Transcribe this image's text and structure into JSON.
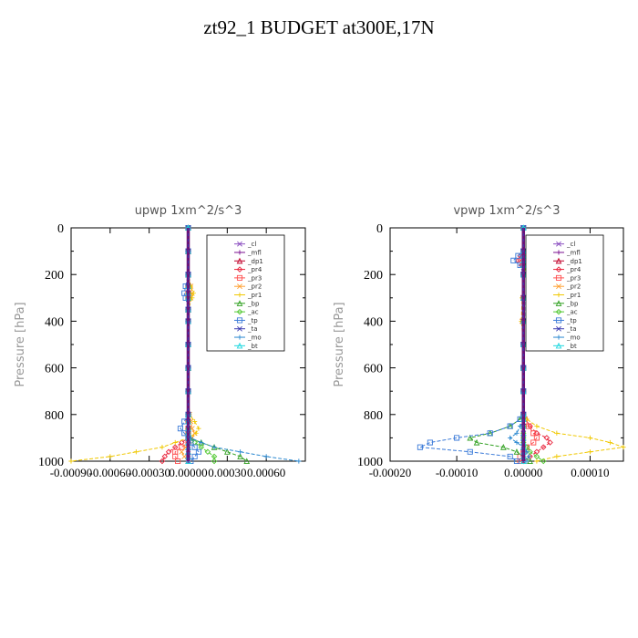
{
  "figure_title": "zt92_1  BUDGET at300E,17N",
  "chart_data": [
    {
      "type": "line",
      "title": "upwp   1xm^2/s^3",
      "ylabel": "Pressure  [hPa]",
      "ylim": [
        1000,
        0
      ],
      "xlim": [
        -0.0009,
        0.0009
      ],
      "yticks": [
        "0",
        "200",
        "400",
        "600",
        "800",
        "1000"
      ],
      "ytick_values": [
        0,
        200,
        400,
        600,
        800,
        1000
      ],
      "xticks": [
        "-0.00090",
        "-0.00060",
        "-0.00030",
        "0.00000",
        "0.00030",
        "0.00060"
      ],
      "xtick_values": [
        -0.0009,
        -0.0006,
        -0.0003,
        0,
        0.0003,
        0.0006
      ],
      "y": [
        0,
        100,
        200,
        250,
        280,
        300,
        350,
        400,
        500,
        600,
        700,
        800,
        830,
        860,
        880,
        900,
        920,
        940,
        960,
        980,
        1000
      ],
      "series": [
        {
          "name": "_cl",
          "color": "#8a4dc0",
          "values": [
            0,
            0,
            0,
            0,
            0,
            0,
            0,
            0,
            0,
            0,
            0,
            0,
            0,
            0,
            0,
            0,
            0,
            0,
            0,
            0,
            0
          ]
        },
        {
          "name": "_mfl",
          "color": "#7a1090",
          "values": [
            0,
            0,
            0,
            0,
            0,
            0,
            0,
            0,
            0,
            0,
            0,
            0,
            0,
            0,
            0,
            0,
            0,
            0,
            0,
            0,
            0
          ]
        },
        {
          "name": "_dp1",
          "color": "#c0002a",
          "values": [
            0,
            0,
            0,
            0,
            0,
            0,
            0,
            0,
            0,
            0,
            0,
            0,
            0,
            0,
            0,
            0,
            0,
            0,
            0,
            0,
            0
          ]
        },
        {
          "name": "_pr4",
          "color": "#e8243c",
          "values": [
            0,
            0,
            0,
            0,
            0,
            0,
            0,
            0,
            0,
            0,
            0,
            0,
            0,
            0,
            0,
            0,
            -5e-05,
            -0.0001,
            -0.00015,
            -0.00018,
            -0.0002
          ]
        },
        {
          "name": "_pr3",
          "color": "#ff5050",
          "values": [
            0,
            0,
            0,
            0,
            0,
            0,
            0,
            0,
            0,
            0,
            0,
            0,
            0,
            0,
            0,
            0,
            0,
            -5e-05,
            -0.0001,
            -0.0001,
            -8e-05
          ]
        },
        {
          "name": "_pr2",
          "color": "#ffa030",
          "values": [
            0,
            0,
            0,
            2e-05,
            3e-05,
            2e-05,
            0,
            0,
            0,
            0,
            0,
            1e-05,
            2e-05,
            3e-05,
            5e-05,
            3e-05,
            0,
            -2e-05,
            -5e-05,
            -3e-05,
            0
          ]
        },
        {
          "name": "_pr1",
          "color": "#f0c800",
          "values": [
            0,
            0,
            0,
            2e-05,
            4e-05,
            3e-05,
            0,
            0,
            0,
            0,
            0,
            1e-05,
            5e-05,
            8e-05,
            6e-05,
            0,
            -0.0001,
            -0.0002,
            -0.0004,
            -0.0006,
            -0.0009
          ]
        },
        {
          "name": "_bp",
          "color": "#30a020",
          "values": [
            0,
            0,
            0,
            0,
            0,
            0,
            0,
            0,
            0,
            0,
            0,
            0,
            0,
            0,
            0,
            0,
            0.0001,
            0.0002,
            0.0003,
            0.0004,
            0.00045
          ]
        },
        {
          "name": "_ac",
          "color": "#50c830",
          "values": [
            0,
            0,
            0,
            0,
            0,
            0,
            0,
            0,
            0,
            0,
            0,
            0,
            0,
            0,
            0,
            0,
            5e-05,
            0.0001,
            0.00015,
            0.0002,
            0.0002
          ]
        },
        {
          "name": "_tp",
          "color": "#3a7ad8",
          "values": [
            0,
            0,
            0,
            -2e-05,
            -3e-05,
            -2e-05,
            0,
            0,
            0,
            0,
            0,
            0,
            -3e-05,
            -6e-05,
            -3e-05,
            0,
            2e-05,
            5e-05,
            8e-05,
            5e-05,
            2e-05
          ]
        },
        {
          "name": "_ta",
          "color": "#3a3ab0",
          "values": [
            0,
            0,
            0,
            0,
            0,
            0,
            0,
            0,
            0,
            0,
            0,
            0,
            0,
            0,
            0,
            0,
            0,
            0,
            0,
            0,
            0
          ]
        },
        {
          "name": "_mo",
          "color": "#2a88d0",
          "values": [
            0,
            0,
            0,
            0,
            0,
            0,
            0,
            0,
            0,
            0,
            0,
            0,
            0,
            0,
            0,
            2e-05,
            0.0001,
            0.0002,
            0.0004,
            0.0006,
            0.00085
          ]
        },
        {
          "name": "_bt",
          "color": "#20d8e0",
          "values": [
            0,
            0,
            0,
            0,
            0,
            0,
            0,
            0,
            0,
            0,
            0,
            0,
            0,
            0,
            0,
            0,
            0,
            0,
            0,
            0,
            0
          ]
        }
      ]
    },
    {
      "type": "line",
      "title": "vpwp   1xm^2/s^3",
      "ylabel": "Pressure  [hPa]",
      "ylim": [
        1000,
        0
      ],
      "xlim": [
        -0.0002,
        0.00015
      ],
      "yticks": [
        "0",
        "200",
        "400",
        "600",
        "800",
        "1000"
      ],
      "ytick_values": [
        0,
        200,
        400,
        600,
        800,
        1000
      ],
      "xticks": [
        "-0.00020",
        "-0.00010",
        "0.00000",
        "0.00010"
      ],
      "xtick_values": [
        -0.0002,
        -0.0001,
        0,
        0.0001
      ],
      "y": [
        0,
        100,
        120,
        140,
        160,
        200,
        300,
        400,
        500,
        600,
        700,
        800,
        820,
        850,
        880,
        900,
        920,
        940,
        960,
        980,
        1000
      ],
      "series": [
        {
          "name": "_cl",
          "color": "#8a4dc0",
          "values": [
            0,
            0,
            0,
            0,
            0,
            0,
            0,
            0,
            0,
            0,
            0,
            0,
            0,
            0,
            0,
            0,
            0,
            0,
            0,
            0,
            0
          ]
        },
        {
          "name": "_mfl",
          "color": "#7a1090",
          "values": [
            0,
            0,
            0,
            0,
            0,
            0,
            0,
            0,
            0,
            0,
            0,
            0,
            0,
            0,
            0,
            0,
            0,
            0,
            0,
            0,
            0
          ]
        },
        {
          "name": "_dp1",
          "color": "#c0002a",
          "values": [
            0,
            0,
            0,
            0,
            0,
            0,
            0,
            0,
            0,
            0,
            0,
            0,
            0,
            0,
            0,
            0,
            0,
            0,
            0,
            0,
            0
          ]
        },
        {
          "name": "_pr4",
          "color": "#e8243c",
          "values": [
            0,
            0,
            -5e-06,
            -8e-06,
            -3e-06,
            0,
            0,
            0,
            0,
            0,
            0,
            0,
            3e-06,
            1e-05,
            2e-05,
            3.5e-05,
            4e-05,
            3e-05,
            2e-05,
            1e-05,
            0
          ]
        },
        {
          "name": "_pr3",
          "color": "#ff5050",
          "values": [
            0,
            0,
            0,
            0,
            0,
            0,
            0,
            0,
            0,
            0,
            0,
            0,
            2e-06,
            8e-06,
            1.5e-05,
            2e-05,
            1.5e-05,
            5e-06,
            0,
            -5e-06,
            -5e-06
          ]
        },
        {
          "name": "_pr2",
          "color": "#ffa030",
          "values": [
            0,
            0,
            5e-06,
            1e-05,
            5e-06,
            0,
            0,
            -2e-06,
            0,
            0,
            0,
            0,
            0,
            0,
            0,
            0,
            0,
            0,
            0,
            0,
            0
          ]
        },
        {
          "name": "_pr1",
          "color": "#f0c800",
          "values": [
            0,
            0,
            5e-06,
            1e-05,
            5e-06,
            0,
            -2e-06,
            -3e-06,
            0,
            0,
            0,
            0,
            5e-06,
            2e-05,
            5e-05,
            0.0001,
            0.00013,
            0.00015,
            0.0001,
            5e-05,
            2e-05
          ]
        },
        {
          "name": "_bp",
          "color": "#30a020",
          "values": [
            0,
            0,
            0,
            0,
            0,
            0,
            0,
            0,
            0,
            0,
            0,
            0,
            -5e-06,
            -2e-05,
            -5e-05,
            -8e-05,
            -7e-05,
            -3e-05,
            -1e-05,
            0,
            1e-05
          ]
        },
        {
          "name": "_ac",
          "color": "#50c830",
          "values": [
            0,
            0,
            8e-06,
            1e-05,
            5e-06,
            0,
            0,
            0,
            0,
            0,
            0,
            0,
            0,
            0,
            0,
            0,
            0,
            5e-06,
            1e-05,
            2e-05,
            3e-05
          ]
        },
        {
          "name": "_tp",
          "color": "#3a7ad8",
          "values": [
            0,
            0,
            -8e-06,
            -1.5e-05,
            -5e-06,
            0,
            2e-06,
            2e-06,
            0,
            0,
            0,
            0,
            -5e-06,
            -2e-05,
            -5e-05,
            -0.0001,
            -0.00014,
            -0.000155,
            -8e-05,
            -2e-05,
            -1e-05
          ]
        },
        {
          "name": "_ta",
          "color": "#3a3ab0",
          "values": [
            0,
            0,
            0,
            0,
            0,
            0,
            0,
            0,
            0,
            0,
            0,
            0,
            0,
            0,
            0,
            0,
            0,
            0,
            0,
            0,
            0
          ]
        },
        {
          "name": "_mo",
          "color": "#2a88d0",
          "values": [
            0,
            0,
            0,
            0,
            0,
            0,
            0,
            0,
            0,
            0,
            0,
            0,
            0,
            -5e-06,
            -1e-05,
            -2e-05,
            -1e-05,
            0,
            5e-06,
            8e-06,
            5e-06
          ]
        },
        {
          "name": "_bt",
          "color": "#20d8e0",
          "values": [
            0,
            0,
            0,
            0,
            0,
            0,
            0,
            0,
            0,
            0,
            0,
            0,
            0,
            0,
            0,
            0,
            0,
            0,
            0,
            0,
            0
          ]
        }
      ]
    }
  ]
}
